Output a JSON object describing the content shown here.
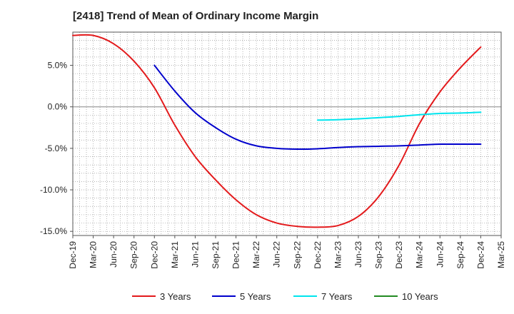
{
  "chart_data": {
    "type": "line",
    "title": "[2418]  Trend of Mean of Ordinary Income Margin",
    "xlabel": "",
    "ylabel": "",
    "x_tick_labels": [
      "Dec-19",
      "Mar-20",
      "Jun-20",
      "Sep-20",
      "Dec-20",
      "Mar-21",
      "Jun-21",
      "Sep-21",
      "Dec-21",
      "Mar-22",
      "Jun-22",
      "Sep-22",
      "Dec-22",
      "Mar-23",
      "Jun-23",
      "Sep-23",
      "Dec-23",
      "Mar-24",
      "Jun-24",
      "Sep-24",
      "Dec-24",
      "Mar-25"
    ],
    "y_ticks": [
      {
        "value": 5,
        "label": "5.0%"
      },
      {
        "value": 0,
        "label": "0.0%"
      },
      {
        "value": -5,
        "label": "-5.0%"
      },
      {
        "value": -10,
        "label": "-10.0%"
      },
      {
        "value": -15,
        "label": "-15.0%"
      }
    ],
    "ylim": [
      -15.5,
      9
    ],
    "grid": true,
    "legend_position": "bottom",
    "series": [
      {
        "name": "3 Years",
        "color": "#e31a1c",
        "points": [
          [
            "Dec-19",
            8.6
          ],
          [
            "Mar-20",
            8.6
          ],
          [
            "Jun-20",
            7.6
          ],
          [
            "Sep-20",
            5.5
          ],
          [
            "Dec-20",
            2.3
          ],
          [
            "Mar-21",
            -2.2
          ],
          [
            "Jun-21",
            -6.0
          ],
          [
            "Sep-21",
            -8.8
          ],
          [
            "Dec-21",
            -11.2
          ],
          [
            "Mar-22",
            -13.0
          ],
          [
            "Jun-22",
            -14.0
          ],
          [
            "Sep-22",
            -14.4
          ],
          [
            "Dec-22",
            -14.5
          ],
          [
            "Mar-23",
            -14.3
          ],
          [
            "Jun-23",
            -13.2
          ],
          [
            "Sep-23",
            -10.8
          ],
          [
            "Dec-23",
            -7.0
          ],
          [
            "Mar-24",
            -2.0
          ],
          [
            "Jun-24",
            1.8
          ],
          [
            "Sep-24",
            4.7
          ],
          [
            "Dec-24",
            7.2
          ]
        ]
      },
      {
        "name": "5 Years",
        "color": "#0000cc",
        "points": [
          [
            "Dec-20",
            5.0
          ],
          [
            "Mar-21",
            1.9
          ],
          [
            "Jun-21",
            -0.7
          ],
          [
            "Sep-21",
            -2.5
          ],
          [
            "Dec-21",
            -3.9
          ],
          [
            "Mar-22",
            -4.7
          ],
          [
            "Jun-22",
            -5.0
          ],
          [
            "Sep-22",
            -5.1
          ],
          [
            "Dec-22",
            -5.05
          ],
          [
            "Mar-23",
            -4.9
          ],
          [
            "Jun-23",
            -4.8
          ],
          [
            "Sep-23",
            -4.75
          ],
          [
            "Dec-23",
            -4.7
          ],
          [
            "Mar-24",
            -4.6
          ],
          [
            "Jun-24",
            -4.5
          ],
          [
            "Sep-24",
            -4.5
          ],
          [
            "Dec-24",
            -4.5
          ]
        ]
      },
      {
        "name": "7 Years",
        "color": "#00e5ee",
        "points": [
          [
            "Dec-22",
            -1.6
          ],
          [
            "Mar-23",
            -1.55
          ],
          [
            "Jun-23",
            -1.45
          ],
          [
            "Sep-23",
            -1.3
          ],
          [
            "Dec-23",
            -1.15
          ],
          [
            "Mar-24",
            -0.95
          ],
          [
            "Jun-24",
            -0.8
          ],
          [
            "Sep-24",
            -0.75
          ],
          [
            "Dec-24",
            -0.65
          ]
        ]
      },
      {
        "name": "10 Years",
        "color": "#228b22",
        "points": []
      }
    ]
  }
}
